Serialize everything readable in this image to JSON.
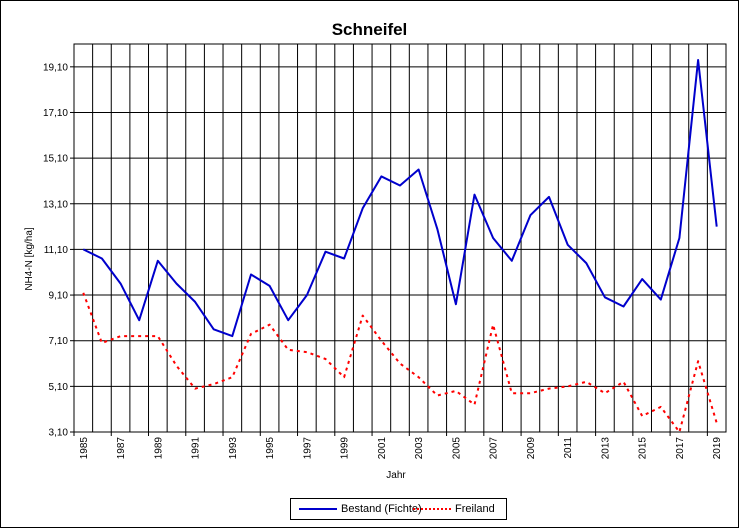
{
  "chart_data": {
    "type": "line",
    "title": "Schneifel",
    "xlabel": "Jahr",
    "ylabel": "NH4-N [kg/ha]",
    "x": [
      1985,
      1986,
      1987,
      1988,
      1989,
      1990,
      1991,
      1992,
      1993,
      1994,
      1995,
      1996,
      1997,
      1998,
      1999,
      2000,
      2001,
      2002,
      2003,
      2004,
      2005,
      2006,
      2007,
      2008,
      2009,
      2010,
      2011,
      2012,
      2013,
      2014,
      2015,
      2016,
      2017,
      2018,
      2019
    ],
    "x_tick_labels": [
      "1985",
      "1987",
      "1989",
      "1991",
      "1993",
      "1995",
      "1997",
      "1999",
      "2001",
      "2003",
      "2005",
      "2007",
      "2009",
      "2011",
      "2013",
      "2015",
      "2017",
      "2019"
    ],
    "y_tick_labels": [
      "3,10",
      "5,10",
      "7,10",
      "9,10",
      "11,10",
      "13,10",
      "15,10",
      "17,10",
      "19,10"
    ],
    "ylim": [
      3.1,
      20.1
    ],
    "grid": true,
    "legend_position": "bottom",
    "series": [
      {
        "name": "Bestand (Fichte)",
        "color": "#0000cc",
        "style": "solid",
        "values": [
          11.1,
          10.7,
          9.6,
          8.0,
          10.6,
          9.6,
          8.8,
          7.6,
          7.3,
          10.0,
          9.5,
          8.0,
          9.1,
          11.0,
          10.7,
          12.9,
          14.3,
          13.9,
          14.6,
          12.0,
          8.7,
          13.5,
          11.6,
          10.6,
          12.6,
          13.4,
          11.3,
          10.5,
          9.0,
          8.6,
          9.8,
          8.9,
          11.6,
          19.4,
          12.1
        ]
      },
      {
        "name": "Freiland",
        "color": "#ff0000",
        "style": "dotted",
        "values": [
          9.2,
          7.0,
          7.3,
          7.3,
          7.3,
          6.0,
          5.0,
          5.2,
          5.5,
          7.4,
          7.8,
          6.7,
          6.6,
          6.3,
          5.5,
          8.2,
          7.1,
          6.1,
          5.5,
          4.7,
          4.9,
          4.3,
          7.8,
          4.8,
          4.8,
          5.0,
          5.1,
          5.3,
          4.8,
          5.3,
          3.8,
          4.2,
          3.1,
          6.2,
          3.5
        ]
      }
    ]
  }
}
